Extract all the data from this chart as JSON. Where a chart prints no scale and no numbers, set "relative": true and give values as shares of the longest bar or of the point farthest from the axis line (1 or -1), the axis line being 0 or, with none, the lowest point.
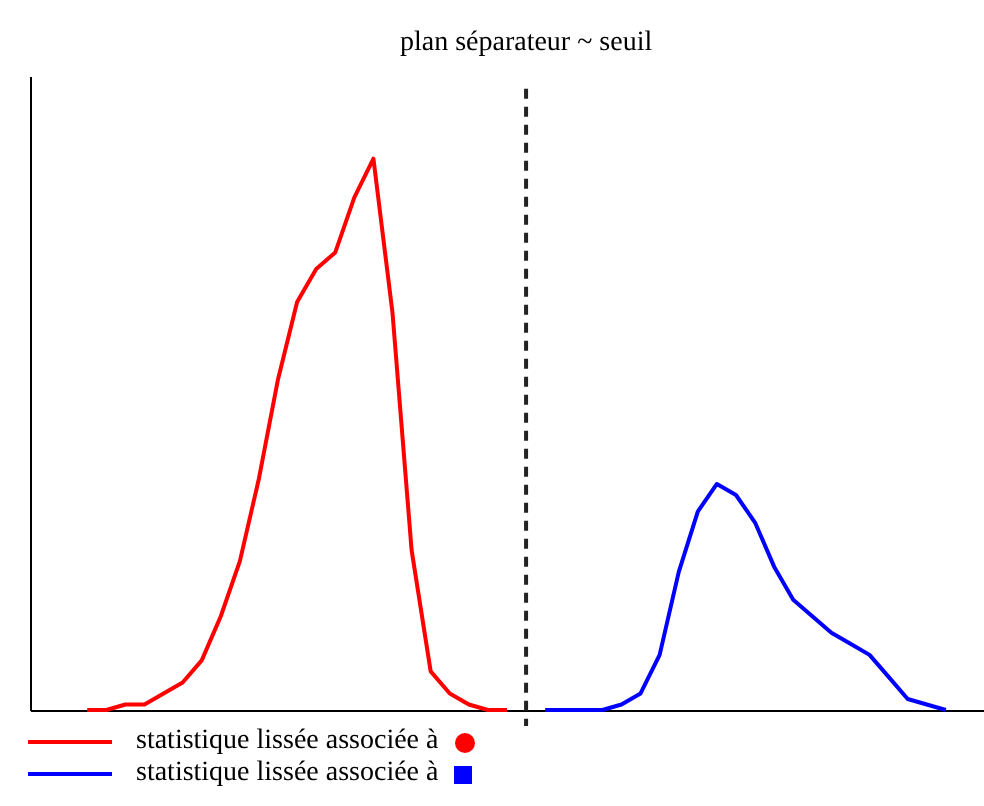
{
  "chart_data": {
    "type": "line",
    "relative": true,
    "legend": "bottom left",
    "line_style": "solid",
    "marker": "none",
    "categories": [
      null,
      null,
      null,
      null,
      null,
      null,
      null,
      null,
      null,
      null,
      null,
      null,
      null,
      null,
      null,
      null,
      null,
      null,
      null,
      null,
      null,
      null,
      null,
      null,
      null,
      null,
      null,
      null,
      null,
      null,
      null,
      null,
      null,
      null,
      null,
      null,
      null,
      null,
      null,
      null,
      null,
      null,
      null,
      null,
      null,
      null,
      null,
      null,
      null,
      null
    ],
    "series": [
      {
        "name": "statistique lissée associée à",
        "color": "#ff0000",
        "values": [
          null,
          null,
          null,
          0,
          0,
          0.01,
          0.01,
          0.03,
          0.05,
          0.09,
          0.17,
          0.27,
          0.42,
          0.6,
          0.74,
          0.8,
          0.83,
          0.93,
          1,
          0.72,
          0.29,
          0.07,
          0.03,
          0.01,
          0,
          0,
          null,
          null,
          null,
          null,
          null,
          null,
          null,
          null,
          null,
          null,
          null,
          null,
          null,
          null,
          null,
          null,
          null,
          null,
          null,
          null,
          null,
          null,
          null,
          null
        ]
      },
      {
        "name": "statistique lissée associée à",
        "color": "#0000ff",
        "values": [
          null,
          null,
          null,
          null,
          null,
          null,
          null,
          null,
          null,
          null,
          null,
          null,
          null,
          null,
          null,
          null,
          null,
          null,
          null,
          null,
          null,
          null,
          null,
          null,
          null,
          null,
          null,
          0,
          0,
          0,
          0,
          0.01,
          0.03,
          0.1,
          0.25,
          0.36,
          0.41,
          0.39,
          0.34,
          0.26,
          0.2,
          0.17,
          0.14,
          0.12,
          0.1,
          0.06,
          0.02,
          0.01,
          0,
          null
        ]
      }
    ],
    "annotations": [
      "plan séparateur ~ seuil"
    ]
  }
}
